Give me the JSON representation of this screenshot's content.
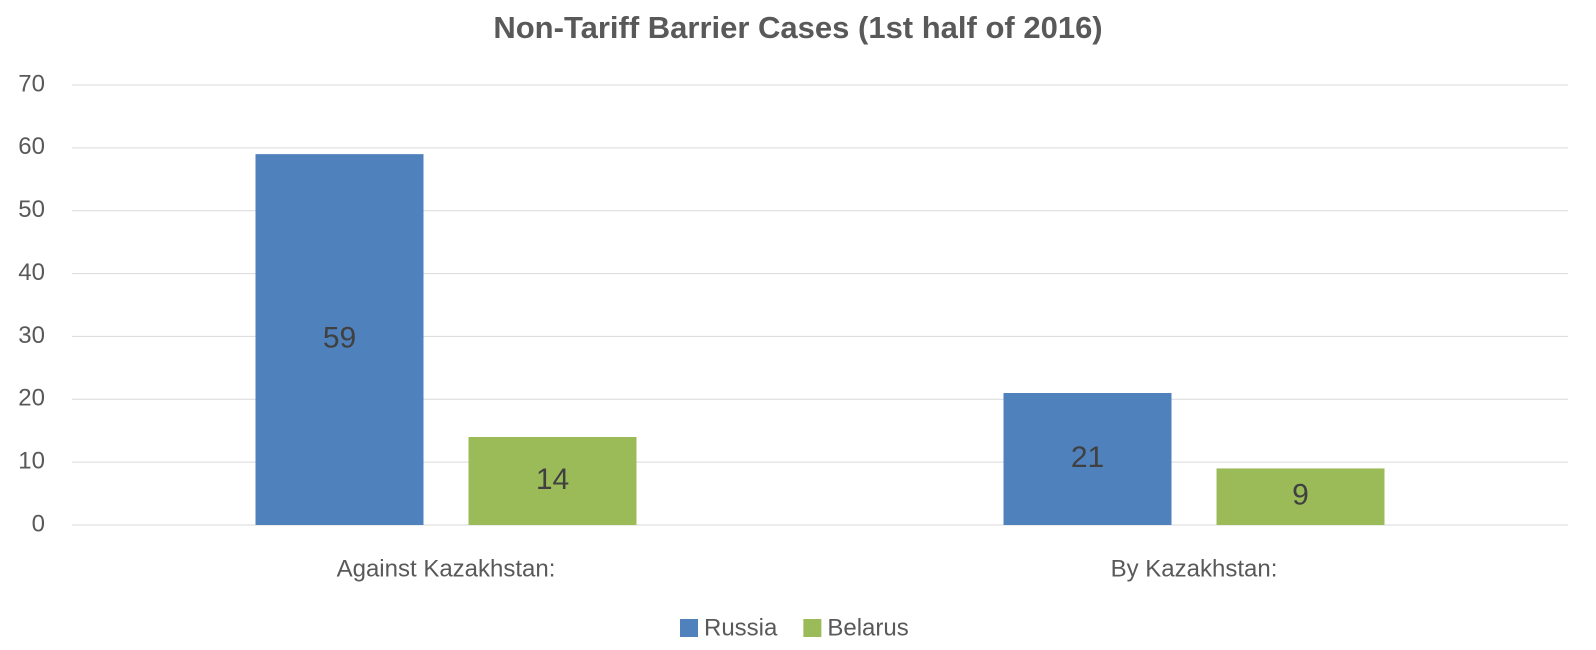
{
  "chart_data": {
    "type": "bar",
    "title": "Non-Tariff Barrier Cases (1st half of 2016)",
    "categories": [
      "Against Kazakhstan:",
      "By Kazakhstan:"
    ],
    "series": [
      {
        "name": "Russia",
        "color": "#4f81bd",
        "values": [
          59,
          21
        ]
      },
      {
        "name": "Belarus",
        "color": "#9bbb59",
        "values": [
          14,
          9
        ]
      }
    ],
    "ylim": [
      0,
      70
    ],
    "yticks": [
      0,
      10,
      20,
      30,
      40,
      50,
      60,
      70
    ],
    "grid": true,
    "legend": "bottom",
    "data_labels": true
  }
}
